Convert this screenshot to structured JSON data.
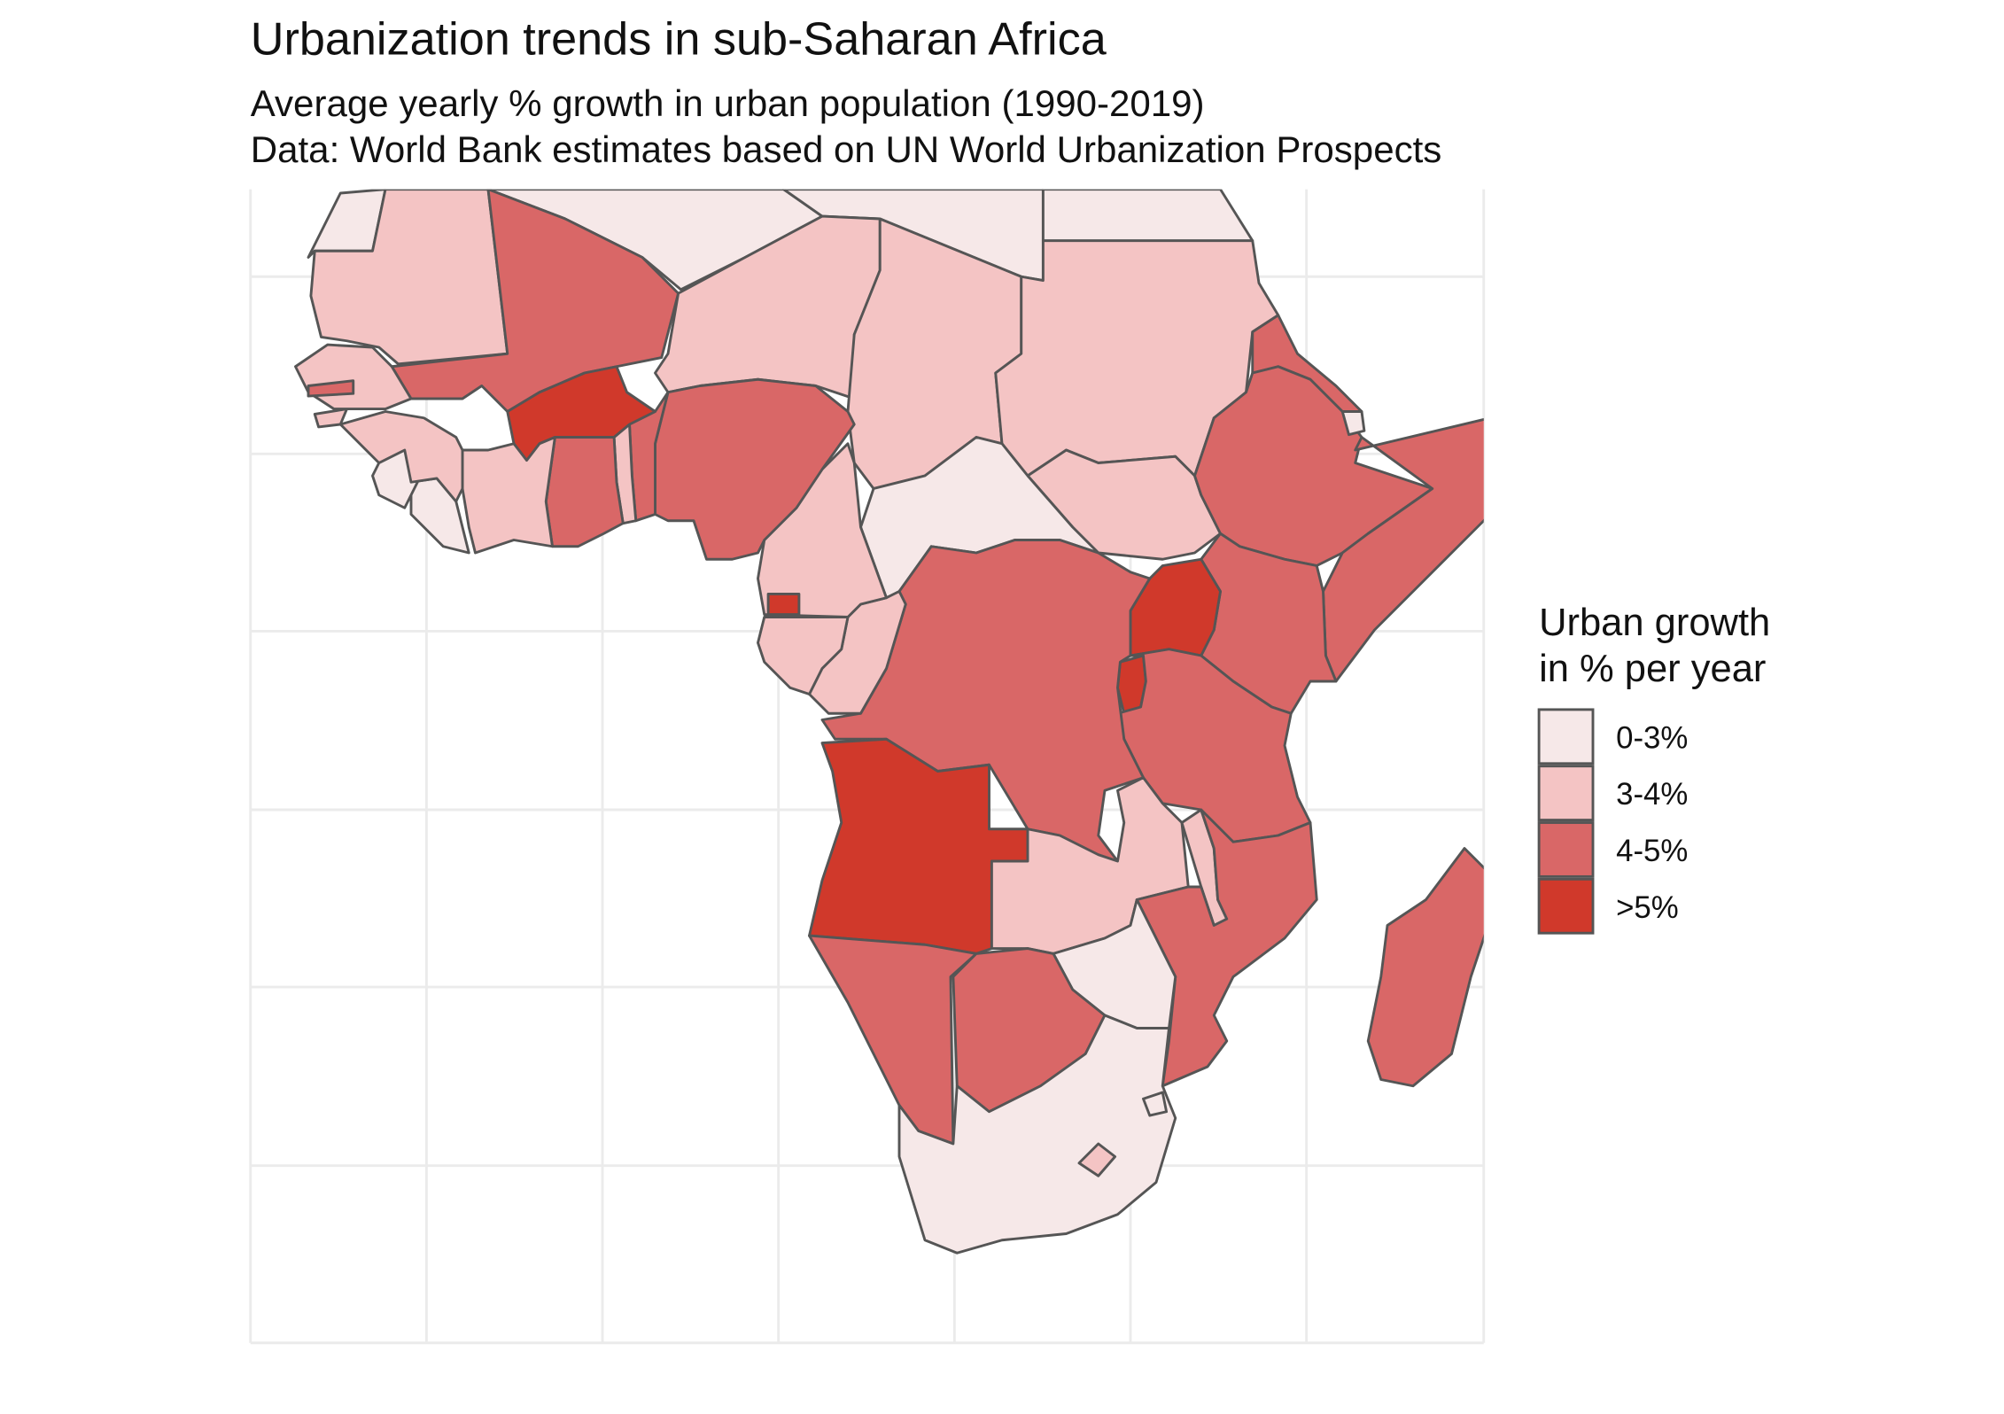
{
  "title": "Urbanization trends in sub-Saharan Africa",
  "subtitle": "Average yearly % growth in urban population (1990-2019)",
  "caption": "Data: World Bank estimates based on UN World Urbanization Prospects",
  "legend": {
    "title": [
      "Urban growth",
      "in % per year"
    ],
    "items": [
      {
        "label": "0-3%",
        "color": "#f6e8e8"
      },
      {
        "label": "3-4%",
        "color": "#f4c4c4"
      },
      {
        "label": "4-5%",
        "color": "#d96767"
      },
      {
        "label": ">5%",
        "color": "#d0392b"
      }
    ]
  }
}
